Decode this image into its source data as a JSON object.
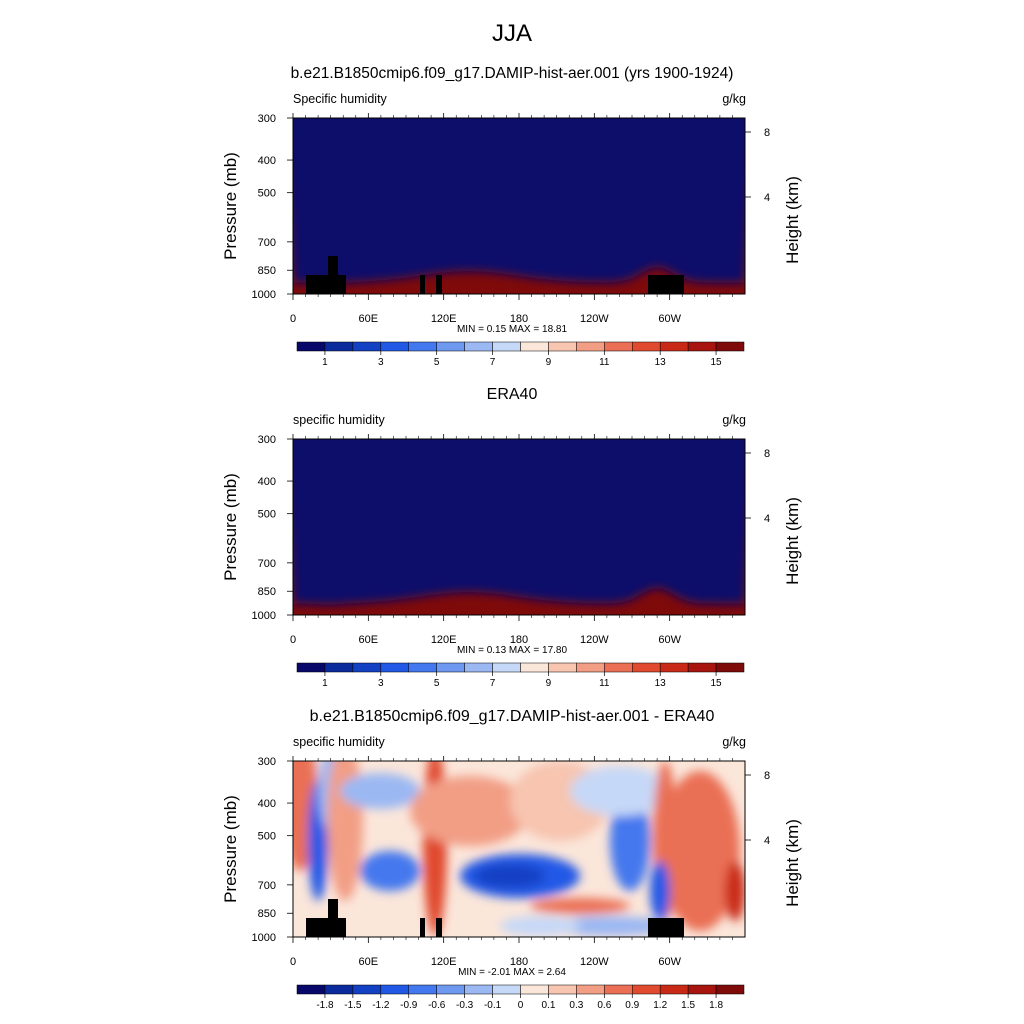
{
  "page": {
    "title": "JJA"
  },
  "axes_common": {
    "ylabel": "Pressure (mb)",
    "ylabel_right": "Height (km)",
    "yticks": [
      "300",
      "400",
      "500",
      "700",
      "850",
      "1000"
    ],
    "yticks_right": [
      "8",
      "4"
    ],
    "xticks": [
      "0",
      "60E",
      "120E",
      "180",
      "120W",
      "60W"
    ]
  },
  "chart_data": [
    {
      "type": "heatmap",
      "title": "b.e21.B1850cmip6.f09_g17.DAMIP-hist-aer.001 (yrs 1900-1924)",
      "left_label": "Specific humidity",
      "units": "g/kg",
      "stats": "MIN =   0.15  MAX =  18.81",
      "min": 0.15,
      "max": 18.81,
      "colorbar": {
        "tick_labels": [
          "1",
          "3",
          "5",
          "7",
          "9",
          "11",
          "13",
          "15"
        ]
      },
      "xaxis": {
        "range": [
          0,
          360
        ],
        "ticks": [
          0,
          60,
          120,
          180,
          240,
          300
        ]
      },
      "yaxis": {
        "range": [
          300,
          1000
        ],
        "ticks": [
          300,
          400,
          500,
          700,
          850,
          1000
        ],
        "reversed": true
      },
      "right_axis": {
        "ticks_km": [
          8,
          4
        ]
      },
      "terrain_mask": true
    },
    {
      "type": "heatmap",
      "title": "ERA40",
      "left_label": "specific humidity",
      "units": "g/kg",
      "stats": "MIN =   0.13  MAX =  17.80",
      "min": 0.13,
      "max": 17.8,
      "colorbar": {
        "tick_labels": [
          "1",
          "3",
          "5",
          "7",
          "9",
          "11",
          "13",
          "15"
        ]
      },
      "xaxis": {
        "range": [
          0,
          360
        ],
        "ticks": [
          0,
          60,
          120,
          180,
          240,
          300
        ]
      },
      "yaxis": {
        "range": [
          300,
          1000
        ],
        "ticks": [
          300,
          400,
          500,
          700,
          850,
          1000
        ],
        "reversed": true
      },
      "right_axis": {
        "ticks_km": [
          8,
          4
        ]
      },
      "terrain_mask": false
    },
    {
      "type": "heatmap",
      "title": "b.e21.B1850cmip6.f09_g17.DAMIP-hist-aer.001 - ERA40",
      "left_label": "specific humidity",
      "units": "g/kg",
      "stats": "MIN =  -2.01  MAX =   2.64",
      "min": -2.01,
      "max": 2.64,
      "colorbar": {
        "tick_labels": [
          "-1.8",
          "-1.5",
          "-1.2",
          "-0.9",
          "-0.6",
          "-0.3",
          "-0.1",
          "0",
          "0.1",
          "0.3",
          "0.6",
          "0.9",
          "1.2",
          "1.5",
          "1.8"
        ]
      },
      "xaxis": {
        "range": [
          0,
          360
        ],
        "ticks": [
          0,
          60,
          120,
          180,
          240,
          300
        ]
      },
      "yaxis": {
        "range": [
          300,
          1000
        ],
        "ticks": [
          300,
          400,
          500,
          700,
          850,
          1000
        ],
        "reversed": true
      },
      "right_axis": {
        "ticks_km": [
          8,
          4
        ]
      },
      "terrain_mask": true
    }
  ],
  "colors": {
    "palette16": [
      "#08086b",
      "#0b2a9c",
      "#1241c4",
      "#2158e6",
      "#4478ee",
      "#6f98f0",
      "#9bb8f3",
      "#c6d8f7",
      "#fbe6da",
      "#f7c5b0",
      "#f29e85",
      "#ea6f55",
      "#e04a2e",
      "#c92a18",
      "#a8150f",
      "#7e0a0a"
    ]
  }
}
